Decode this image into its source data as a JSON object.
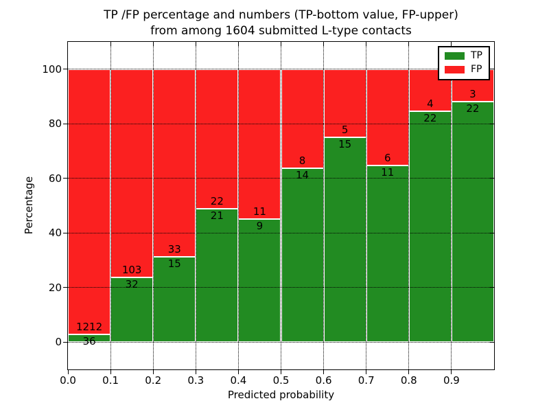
{
  "figure": {
    "title_line1": "TP /FP percentage and numbers (TP-bottom value, FP-upper)",
    "title_line2": "from among 1604 submitted L-type contacts"
  },
  "chart_data": {
    "type": "bar",
    "stacked": true,
    "normalized_to_percent": true,
    "title": "TP /FP percentage and numbers (TP-bottom value, FP-upper) from among 1604 submitted L-type contacts",
    "xlabel": "Predicted probability",
    "ylabel": "Percentage",
    "total_contacts": 1604,
    "bin_edges": [
      0.0,
      0.1,
      0.2,
      0.3,
      0.4,
      0.5,
      0.6,
      0.7,
      0.8,
      0.9,
      1.0
    ],
    "x_tick_labels": [
      "0.0",
      "0.1",
      "0.2",
      "0.3",
      "0.4",
      "0.5",
      "0.6",
      "0.7",
      "0.8",
      "0.9"
    ],
    "y_ticks": [
      0,
      20,
      40,
      60,
      80,
      100
    ],
    "y_tick_labels": [
      "0",
      "20",
      "40",
      "60",
      "80",
      "100"
    ],
    "xlim": [
      0.0,
      1.0
    ],
    "ylim": [
      -10,
      110
    ],
    "grid": "dotted",
    "grid_color": "#000000",
    "bar_edge_color": "#ffffff",
    "series": [
      {
        "name": "TP",
        "color": "#228B22",
        "counts": [
          36,
          32,
          15,
          21,
          9,
          14,
          15,
          11,
          22,
          22
        ]
      },
      {
        "name": "FP",
        "color": "#FB2020",
        "counts": [
          1212,
          103,
          33,
          22,
          11,
          8,
          5,
          6,
          4,
          3
        ]
      }
    ],
    "tp_percent": [
      2.9,
      23.7,
      31.3,
      48.8,
      45.0,
      63.6,
      75.0,
      64.7,
      84.6,
      88.0
    ],
    "fp_percent": [
      97.1,
      76.3,
      68.7,
      51.2,
      55.0,
      36.4,
      25.0,
      35.3,
      15.4,
      12.0
    ],
    "legend": {
      "location": "upper right",
      "entries": [
        {
          "label": "TP",
          "color": "#228B22"
        },
        {
          "label": "FP",
          "color": "#FB2020"
        }
      ]
    }
  }
}
